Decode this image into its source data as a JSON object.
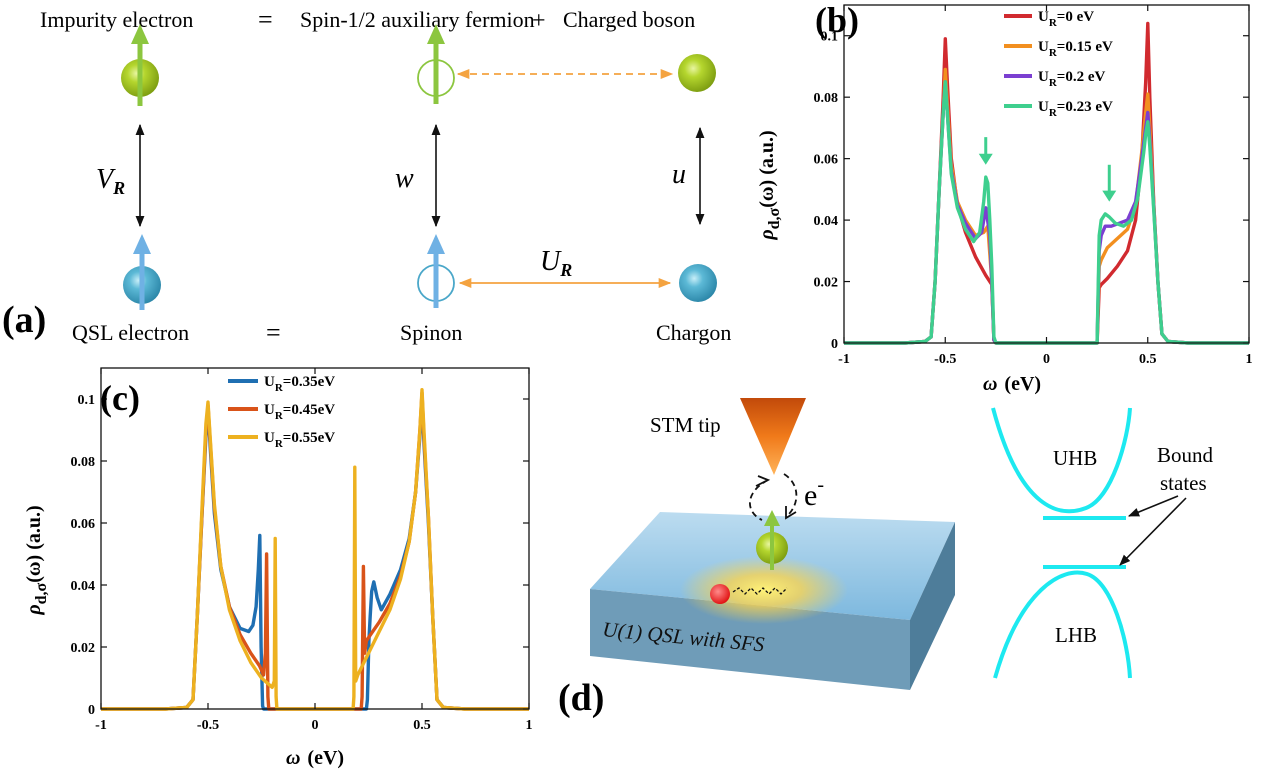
{
  "panel_a": {
    "label": "(a)",
    "top_eq": {
      "impurity": "Impurity electron",
      "eq": "=",
      "aux": "Spin-1/2 auxiliary fermion",
      "plus": "+",
      "boson": "Charged boson"
    },
    "bottom_eq": {
      "qsl": "QSL electron",
      "eq": "=",
      "spinon": "Spinon",
      "chargon": "Chargon"
    },
    "couplings": {
      "vr_main": "V",
      "vr_sub": "R",
      "w": "w",
      "u": "u",
      "ur_main": "U",
      "ur_sub": "R"
    },
    "colors": {
      "impurity": "#9dc21d",
      "qsl": "#4aa7c9",
      "spin_up_green": "#8cc63f",
      "spin_up_blue": "#6fb1e4",
      "orange": "#f4a340"
    }
  },
  "panel_b": {
    "label": "(b)",
    "xlabel": "ω (eV)",
    "ylabel_main": "ρ",
    "ylabel_sub": "d,σ",
    "ylabel_tail": "(ω) (a.u.)"
  },
  "panel_c": {
    "label": "(c)",
    "xlabel": "ω (eV)",
    "ylabel_main": "ρ",
    "ylabel_sub": "d,σ",
    "ylabel_tail": "(ω) (a.u.)"
  },
  "panel_d": {
    "label": "(d)",
    "stm_tip": "STM tip",
    "electron": "e",
    "electron_sup": "-",
    "slab": "U(1) QSL with SFS",
    "uhb": "UHB",
    "lhb": "LHB",
    "bound_1": "Bound",
    "bound_2": "states",
    "band_color": "#1de9f0"
  },
  "chart_data": [
    {
      "type": "line",
      "panel": "b",
      "xlabel": "ω (eV)",
      "ylabel": "ρ_d,σ(ω) (a.u.)",
      "xlim": [
        -1,
        1
      ],
      "ylim": [
        0,
        0.11
      ],
      "xticks": [
        -1,
        -0.5,
        0,
        0.5,
        1
      ],
      "xtick_labels": [
        "-1",
        "-0.5",
        "0",
        "0.5",
        "1"
      ],
      "yticks": [
        0,
        0.02,
        0.04,
        0.06,
        0.08,
        0.1
      ],
      "ytick_labels": [
        "0",
        "0.02",
        "0.04",
        "0.06",
        "0.08",
        "0.1"
      ],
      "legend_position": "top-right",
      "series": [
        {
          "name": "U_R=0 eV",
          "label_main": "U",
          "label_sub": "R",
          "label_tail": "=0 eV",
          "color": "#d12a2f",
          "x": [
            -1,
            -0.7,
            -0.6,
            -0.57,
            -0.55,
            -0.53,
            -0.51,
            -0.5,
            -0.49,
            -0.47,
            -0.44,
            -0.4,
            -0.35,
            -0.3,
            -0.27,
            -0.26,
            -0.25,
            0,
            0.25,
            0.26,
            0.27,
            0.3,
            0.35,
            0.4,
            0.44,
            0.47,
            0.49,
            0.5,
            0.51,
            0.53,
            0.55,
            0.57,
            0.6,
            0.7,
            1
          ],
          "y": [
            0,
            0,
            0.0005,
            0.002,
            0.02,
            0.05,
            0.08,
            0.099,
            0.085,
            0.06,
            0.045,
            0.036,
            0.028,
            0.022,
            0.019,
            0.001,
            0,
            0,
            0,
            0.018,
            0.019,
            0.021,
            0.025,
            0.03,
            0.04,
            0.06,
            0.085,
            0.104,
            0.08,
            0.045,
            0.02,
            0.003,
            0.0005,
            0,
            0
          ]
        },
        {
          "name": "U_R=0.15 eV",
          "label_main": "U",
          "label_sub": "R",
          "label_tail": "=0.15 eV",
          "color": "#f28f1f",
          "x": [
            -1,
            -0.7,
            -0.6,
            -0.57,
            -0.55,
            -0.53,
            -0.51,
            -0.5,
            -0.49,
            -0.47,
            -0.44,
            -0.4,
            -0.35,
            -0.31,
            -0.29,
            -0.27,
            -0.26,
            -0.25,
            0,
            0.25,
            0.26,
            0.27,
            0.3,
            0.35,
            0.4,
            0.44,
            0.47,
            0.49,
            0.5,
            0.51,
            0.53,
            0.55,
            0.57,
            0.6,
            0.7,
            1
          ],
          "y": [
            0,
            0,
            0.0005,
            0.002,
            0.02,
            0.05,
            0.075,
            0.089,
            0.078,
            0.058,
            0.046,
            0.04,
            0.035,
            0.036,
            0.038,
            0.02,
            0.001,
            0,
            0,
            0,
            0.025,
            0.027,
            0.031,
            0.034,
            0.037,
            0.045,
            0.062,
            0.075,
            0.081,
            0.07,
            0.045,
            0.02,
            0.003,
            0.0005,
            0,
            0
          ]
        },
        {
          "name": "U_R=0.2 eV",
          "label_main": "U",
          "label_sub": "R",
          "label_tail": "=0.2 eV",
          "color": "#7b3fd1",
          "x": [
            -1,
            -0.7,
            -0.6,
            -0.57,
            -0.55,
            -0.53,
            -0.51,
            -0.5,
            -0.49,
            -0.47,
            -0.44,
            -0.4,
            -0.35,
            -0.32,
            -0.3,
            -0.28,
            -0.27,
            -0.26,
            -0.25,
            0,
            0.25,
            0.26,
            0.27,
            0.29,
            0.32,
            0.36,
            0.4,
            0.44,
            0.47,
            0.49,
            0.5,
            0.51,
            0.53,
            0.55,
            0.57,
            0.6,
            0.7,
            1
          ],
          "y": [
            0,
            0,
            0.0005,
            0.002,
            0.02,
            0.05,
            0.075,
            0.085,
            0.075,
            0.056,
            0.045,
            0.039,
            0.034,
            0.036,
            0.044,
            0.035,
            0.02,
            0.001,
            0,
            0,
            0,
            0.03,
            0.035,
            0.038,
            0.038,
            0.039,
            0.04,
            0.046,
            0.06,
            0.07,
            0.075,
            0.066,
            0.044,
            0.02,
            0.003,
            0.0005,
            0,
            0
          ]
        },
        {
          "name": "U_R=0.23 eV",
          "label_main": "U",
          "label_sub": "R",
          "label_tail": "=0.23 eV",
          "color": "#3ecf8e",
          "x": [
            -1,
            -0.7,
            -0.6,
            -0.57,
            -0.55,
            -0.53,
            -0.51,
            -0.5,
            -0.49,
            -0.47,
            -0.44,
            -0.4,
            -0.36,
            -0.33,
            -0.31,
            -0.3,
            -0.29,
            -0.28,
            -0.27,
            -0.26,
            -0.25,
            0,
            0.25,
            0.26,
            0.27,
            0.29,
            0.31,
            0.34,
            0.38,
            0.42,
            0.45,
            0.48,
            0.49,
            0.5,
            0.51,
            0.53,
            0.55,
            0.57,
            0.6,
            0.7,
            1
          ],
          "y": [
            0,
            0,
            0.0005,
            0.002,
            0.02,
            0.05,
            0.075,
            0.085,
            0.075,
            0.055,
            0.044,
            0.037,
            0.033,
            0.036,
            0.046,
            0.054,
            0.052,
            0.04,
            0.025,
            0.002,
            0,
            0,
            0,
            0.035,
            0.04,
            0.042,
            0.041,
            0.039,
            0.038,
            0.04,
            0.047,
            0.062,
            0.068,
            0.072,
            0.064,
            0.043,
            0.02,
            0.003,
            0.0005,
            0,
            0
          ]
        }
      ],
      "annotations": [
        {
          "type": "arrow",
          "x": -0.3,
          "y_from": 0.067,
          "y_to": 0.058,
          "color": "#3ecf8e"
        },
        {
          "type": "arrow",
          "x": 0.31,
          "y_from": 0.058,
          "y_to": 0.046,
          "color": "#3ecf8e"
        }
      ]
    },
    {
      "type": "line",
      "panel": "c",
      "xlabel": "ω (eV)",
      "ylabel": "ρ_d,σ(ω) (a.u.)",
      "xlim": [
        -1,
        1
      ],
      "ylim": [
        0,
        0.11
      ],
      "xticks": [
        -1,
        -0.5,
        0,
        0.5,
        1
      ],
      "xtick_labels": [
        "-1",
        "-0.5",
        "0",
        "0.5",
        "1"
      ],
      "yticks": [
        0,
        0.02,
        0.04,
        0.06,
        0.08,
        0.1
      ],
      "ytick_labels": [
        "0",
        "0.02",
        "0.04",
        "0.06",
        "0.08",
        "0.1"
      ],
      "legend_position": "top-left",
      "series": [
        {
          "name": "U_R=0.35eV",
          "label_main": "U",
          "label_sub": "R",
          "label_tail": "=0.35eV",
          "color": "#1f6fb2",
          "x": [
            -1,
            -0.7,
            -0.6,
            -0.57,
            -0.55,
            -0.53,
            -0.51,
            -0.5,
            -0.49,
            -0.47,
            -0.44,
            -0.4,
            -0.35,
            -0.31,
            -0.29,
            -0.275,
            -0.265,
            -0.258,
            -0.252,
            -0.245,
            -0.24,
            0,
            0.24,
            0.245,
            0.252,
            0.258,
            0.265,
            0.275,
            0.29,
            0.31,
            0.35,
            0.4,
            0.44,
            0.47,
            0.49,
            0.5,
            0.51,
            0.53,
            0.55,
            0.57,
            0.6,
            0.7,
            1
          ],
          "y": [
            0,
            0,
            0.0005,
            0.003,
            0.03,
            0.06,
            0.088,
            0.097,
            0.085,
            0.063,
            0.045,
            0.033,
            0.026,
            0.025,
            0.027,
            0.033,
            0.045,
            0.056,
            0.02,
            0.001,
            0,
            0,
            0,
            0.003,
            0.022,
            0.03,
            0.038,
            0.041,
            0.036,
            0.032,
            0.037,
            0.045,
            0.055,
            0.07,
            0.088,
            0.1,
            0.085,
            0.06,
            0.03,
            0.003,
            0.0005,
            0,
            0
          ]
        },
        {
          "name": "U_R=0.45eV",
          "label_main": "U",
          "label_sub": "R",
          "label_tail": "=0.45eV",
          "color": "#d95319",
          "x": [
            -1,
            -0.7,
            -0.6,
            -0.57,
            -0.55,
            -0.53,
            -0.51,
            -0.5,
            -0.49,
            -0.47,
            -0.44,
            -0.4,
            -0.35,
            -0.3,
            -0.26,
            -0.24,
            -0.232,
            -0.226,
            -0.22,
            -0.216,
            0,
            0.216,
            0.22,
            0.226,
            0.232,
            0.24,
            0.26,
            0.3,
            0.35,
            0.4,
            0.44,
            0.47,
            0.49,
            0.5,
            0.51,
            0.53,
            0.55,
            0.57,
            0.6,
            0.7,
            1
          ],
          "y": [
            0,
            0,
            0.0005,
            0.003,
            0.03,
            0.06,
            0.09,
            0.098,
            0.087,
            0.065,
            0.046,
            0.033,
            0.024,
            0.018,
            0.014,
            0.011,
            0.018,
            0.05,
            0.004,
            0,
            0,
            0,
            0.004,
            0.046,
            0.018,
            0.022,
            0.024,
            0.028,
            0.034,
            0.043,
            0.054,
            0.07,
            0.09,
            0.102,
            0.087,
            0.062,
            0.03,
            0.003,
            0.0005,
            0,
            0
          ]
        },
        {
          "name": "U_R=0.55eV",
          "label_main": "U",
          "label_sub": "R",
          "label_tail": "=0.55eV",
          "color": "#edb120",
          "x": [
            -1,
            -0.7,
            -0.6,
            -0.57,
            -0.55,
            -0.53,
            -0.51,
            -0.5,
            -0.49,
            -0.47,
            -0.44,
            -0.4,
            -0.35,
            -0.3,
            -0.25,
            -0.2,
            -0.19,
            -0.186,
            -0.182,
            -0.178,
            0,
            0.178,
            0.182,
            0.186,
            0.19,
            0.2,
            0.25,
            0.3,
            0.35,
            0.4,
            0.44,
            0.47,
            0.49,
            0.5,
            0.51,
            0.53,
            0.55,
            0.57,
            0.6,
            0.7,
            1
          ],
          "y": [
            0,
            0,
            0.0005,
            0.003,
            0.03,
            0.062,
            0.092,
            0.099,
            0.088,
            0.066,
            0.046,
            0.032,
            0.022,
            0.015,
            0.01,
            0.007,
            0.009,
            0.055,
            0.004,
            0,
            0,
            0,
            0.004,
            0.078,
            0.009,
            0.011,
            0.018,
            0.025,
            0.032,
            0.042,
            0.054,
            0.07,
            0.09,
            0.103,
            0.089,
            0.062,
            0.03,
            0.003,
            0.0005,
            0,
            0
          ]
        }
      ]
    }
  ]
}
